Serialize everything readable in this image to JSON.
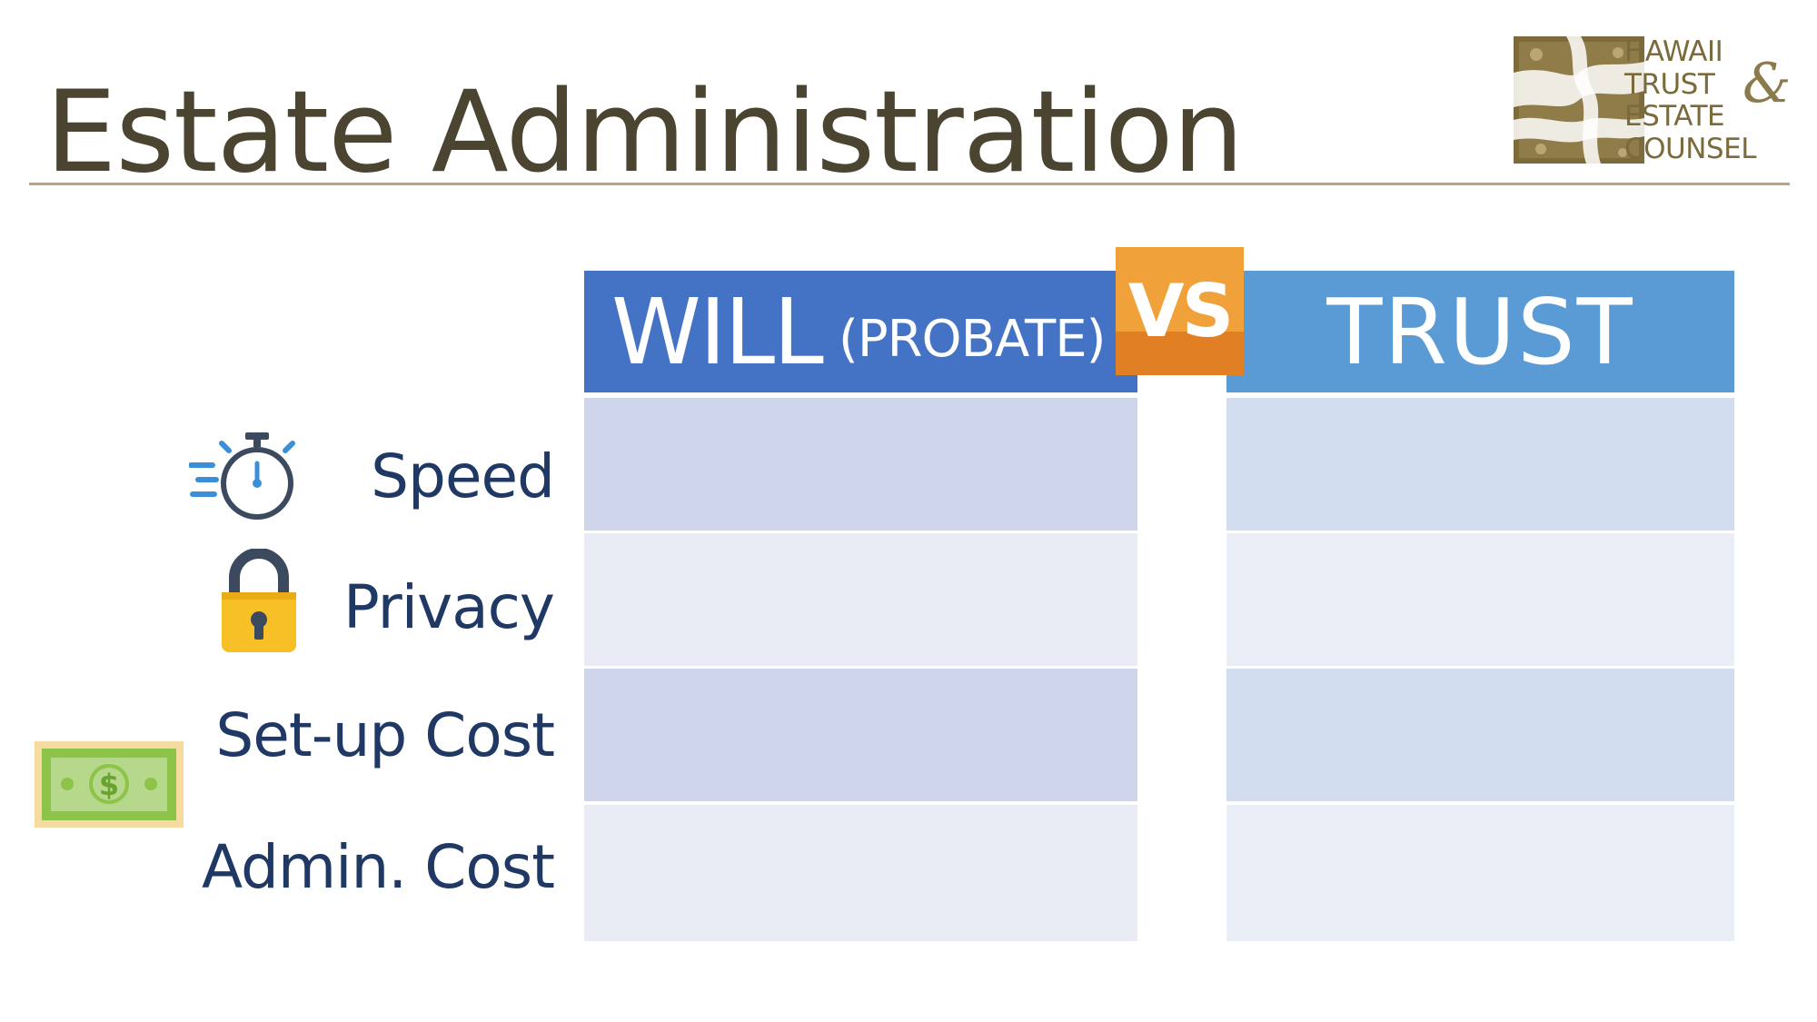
{
  "title": "Estate Administration",
  "logo": {
    "lines": [
      "HAWAII",
      "TRUST",
      "ESTATE",
      "COUNSEL"
    ],
    "ampersand": "&"
  },
  "columns": {
    "will_main": "WILL",
    "will_sub": "(PROBATE)",
    "vs": "VS",
    "trust": "TRUST"
  },
  "rows": [
    {
      "label": "Speed",
      "icon": "stopwatch-icon"
    },
    {
      "label": "Privacy",
      "icon": "padlock-icon"
    },
    {
      "label": "Set-up Cost",
      "icon": "dollar-bill-icon"
    },
    {
      "label": "Admin. Cost",
      "icon": ""
    }
  ],
  "colors": {
    "title": "#4a4430",
    "rule": "#b9a57d",
    "will_header": "#4472c4",
    "trust_header": "#5b9bd5",
    "vs_badge": "#f0a13a",
    "row_label": "#1f3864",
    "will_cell_dark": "#cfd5ea",
    "will_cell_light": "#e9ebf5",
    "trust_cell_dark": "#d2deef",
    "trust_cell_light": "#eaeff7"
  }
}
